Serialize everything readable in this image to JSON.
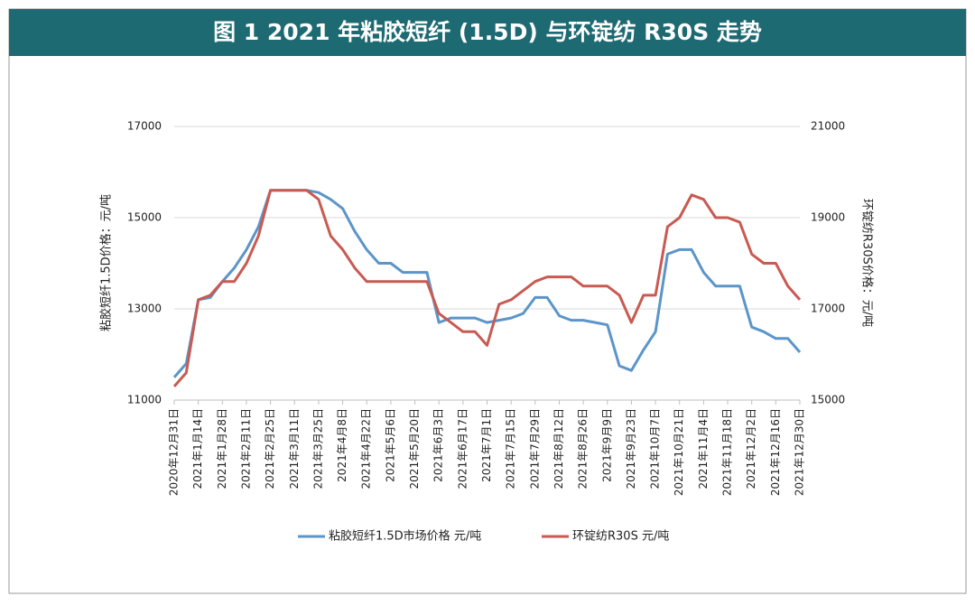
{
  "chart_data": {
    "type": "line",
    "title": "图 1 2021 年粘胶短纤 (1.5D) 与环锭纺 R30S 走势",
    "y_label": "粘胶短纤1.5D价格：元/吨",
    "y2_label": "环锭纺R30S价格：元/吨",
    "categories": [
      "2020年12月31日",
      null,
      "2021年1月14日",
      null,
      "2021年1月28日",
      null,
      "2021年2月11日",
      null,
      "2021年2月25日",
      null,
      "2021年3月11日",
      null,
      "2021年3月25日",
      null,
      "2021年4月8日",
      null,
      "2021年4月22日",
      null,
      "2021年5月6日",
      null,
      "2021年5月20日",
      null,
      "2021年6月3日",
      null,
      "2021年6月17日",
      null,
      "2021年7月1日",
      null,
      "2021年7月15日",
      null,
      "2021年7月29日",
      null,
      "2021年8月12日",
      null,
      "2021年8月26日",
      null,
      "2021年9月9日",
      null,
      "2021年9月23日",
      null,
      "2021年10月7日",
      null,
      "2021年10月21日",
      null,
      "2021年11月4日",
      null,
      "2021年11月18日",
      null,
      "2021年12月2日",
      null,
      "2021年12月16日",
      null,
      "2021年12月30日"
    ],
    "series": [
      {
        "name": "粘胶短纤1.5D市场价格  元/吨",
        "color": "#5b95c9",
        "values": [
          11500,
          11800,
          13200,
          13250,
          13600,
          13900,
          14300,
          14800,
          15600,
          15600,
          15600,
          15600,
          15550,
          15400,
          15200,
          14700,
          14300,
          14000,
          14000,
          13800,
          13800,
          13800,
          12700,
          12800,
          12800,
          12800,
          12700,
          12750,
          12800,
          12900,
          13250,
          13250,
          12850,
          12750,
          12750,
          12700,
          12650,
          11750,
          11650,
          12100,
          12500,
          14200,
          14300,
          14300,
          13800,
          13500,
          13500,
          13500,
          12600,
          12500,
          12350,
          12350,
          12050
        ]
      },
      {
        "name": "环锭纺R30S 元/吨",
        "color": "#c95a52",
        "axis": "y2",
        "values": [
          15300,
          15600,
          17200,
          17300,
          17600,
          17600,
          18000,
          18600,
          19600,
          19600,
          19600,
          19600,
          19400,
          18600,
          18300,
          17900,
          17600,
          17600,
          17600,
          17600,
          17600,
          17600,
          16900,
          16700,
          16500,
          16500,
          16200,
          17100,
          17200,
          17400,
          17600,
          17700,
          17700,
          17700,
          17500,
          17500,
          17500,
          17300,
          16700,
          17300,
          17300,
          18800,
          19000,
          19500,
          19400,
          19000,
          19000,
          18900,
          18200,
          18000,
          18000,
          17500,
          17200
        ]
      }
    ],
    "ylim": [
      11000,
      17000
    ],
    "yticks": [
      11000,
      13000,
      15000,
      17000
    ],
    "y2lim": [
      15000,
      21000
    ],
    "y2ticks": [
      15000,
      17000,
      19000,
      21000
    ],
    "grid": true,
    "legend": "bottom"
  }
}
